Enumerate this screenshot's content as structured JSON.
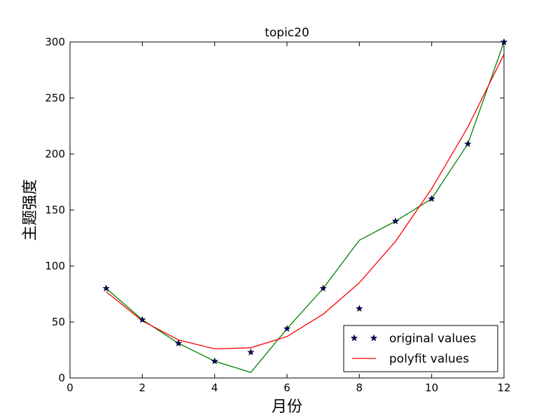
{
  "chart_data": {
    "type": "line",
    "title": "topic20",
    "xlabel": "月份",
    "ylabel": "主题强度",
    "xlim": [
      0,
      12
    ],
    "ylim": [
      0,
      300
    ],
    "xticks": [
      0,
      2,
      4,
      6,
      8,
      10,
      12
    ],
    "yticks": [
      0,
      50,
      100,
      150,
      200,
      250,
      300
    ],
    "xtick_labels": [
      "0",
      "2",
      "4",
      "6",
      "8",
      "10",
      "12"
    ],
    "ytick_labels": [
      "0",
      "50",
      "100",
      "150",
      "200",
      "250",
      "300"
    ],
    "grid": false,
    "legend_position": "lower-right",
    "x": [
      1,
      2,
      3,
      4,
      5,
      6,
      7,
      8,
      9,
      10,
      11,
      12
    ],
    "series": [
      {
        "name": "original values",
        "style": "markers",
        "marker": "star",
        "color": "#000080",
        "values": [
          80,
          52,
          31,
          15,
          23,
          44,
          80,
          62,
          140,
          160,
          209,
          300
        ]
      },
      {
        "name": "",
        "style": "line",
        "color": "#008000",
        "values": [
          80,
          52,
          31,
          15,
          5,
          44,
          80,
          123,
          140,
          160,
          209,
          300
        ]
      },
      {
        "name": "polyfit values",
        "style": "line",
        "color": "#ff0000",
        "values": [
          77,
          51,
          34,
          26,
          27,
          37,
          57,
          85,
          122,
          169,
          224,
          289
        ]
      }
    ]
  }
}
